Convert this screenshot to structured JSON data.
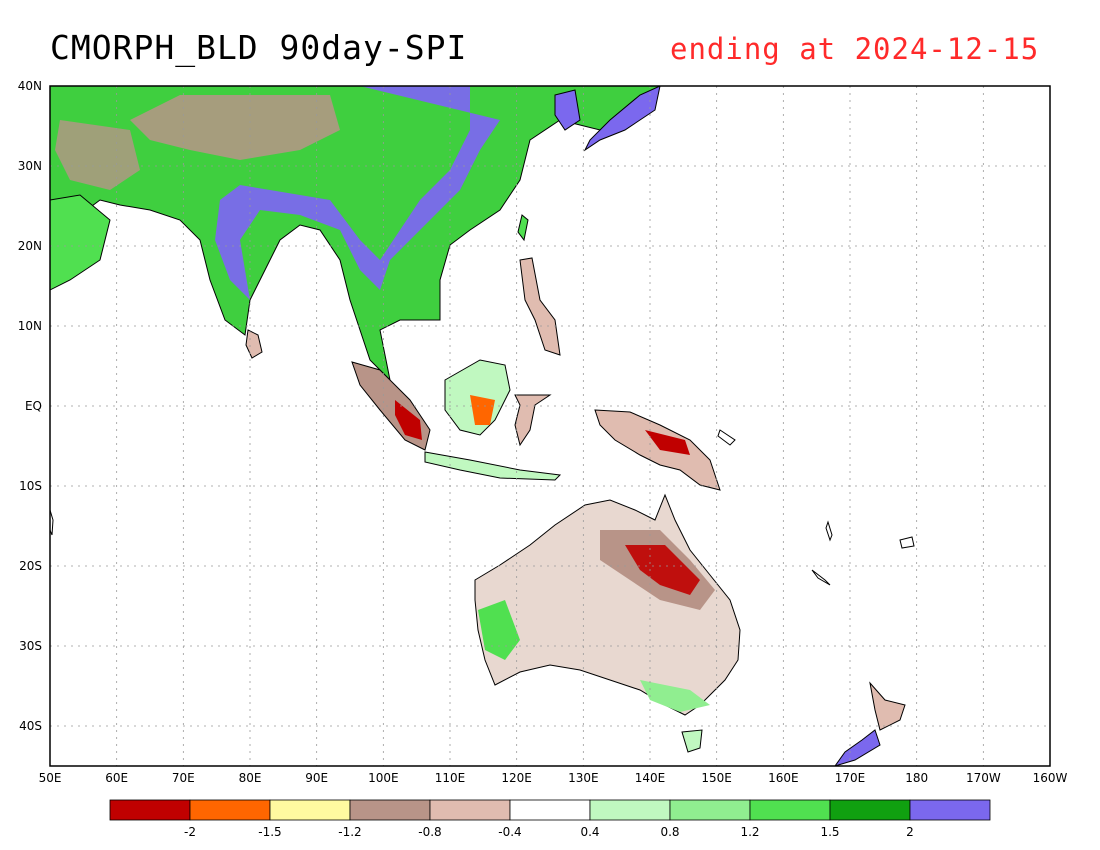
{
  "title": "CMORPH_BLD 90day-SPI",
  "subtitle": "ending at 2024-12-15",
  "map": {
    "lon_labels": [
      "50E",
      "60E",
      "70E",
      "80E",
      "90E",
      "100E",
      "110E",
      "120E",
      "130E",
      "140E",
      "150E",
      "160E",
      "170E",
      "180",
      "170W",
      "160W"
    ],
    "lat_labels": [
      "40N",
      "30N",
      "20N",
      "10N",
      "EQ",
      "10S",
      "20S",
      "30S",
      "40S"
    ],
    "lon_range": [
      50,
      200
    ],
    "lat_range": [
      -45,
      40
    ],
    "grid": true
  },
  "legend": {
    "colors": [
      "#c00000",
      "#ff6600",
      "#fffaa0",
      "#b89488",
      "#e0bcb0",
      "#ffffff",
      "#c0f8c0",
      "#90ee90",
      "#50e050",
      "#10a010",
      "#7b68ee"
    ],
    "labels": [
      "-2",
      "-1.5",
      "-1.2",
      "-0.8",
      "-0.4",
      "0.4",
      "0.8",
      "1.2",
      "1.5",
      "2"
    ]
  }
}
